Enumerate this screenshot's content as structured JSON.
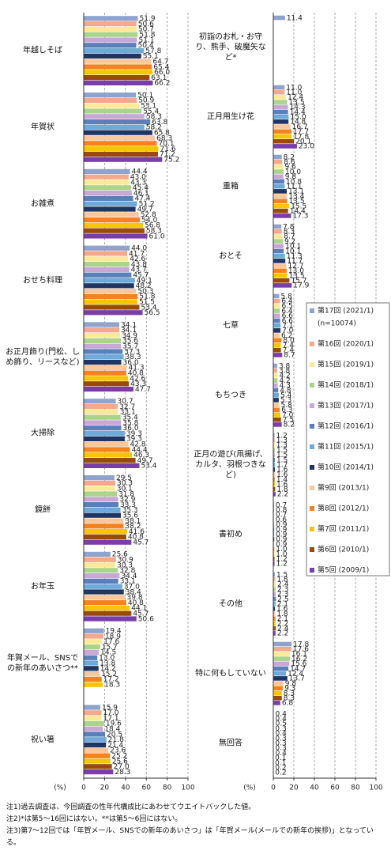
{
  "chart_data": [
    {
      "type": "bar",
      "orientation": "horizontal",
      "axis_label": "(%)",
      "categories": [
        "年越しそば",
        "年賀状",
        "お雑煮",
        "おせち料理",
        "お正月飾り(門松、しめ飾り、リースなど)",
        "大掃除",
        "鏡餅",
        "お年玉",
        "年賀メール、SNSでの新年のあいさつ**",
        "祝い箸"
      ],
      "xlim": [
        0,
        100
      ],
      "xticks": [
        0,
        20,
        40,
        60,
        80,
        100
      ],
      "grid": true,
      "series": [
        {
          "color": "#8fa3cf",
          "values": [
            51.9,
            50.1,
            44.4,
            44.0,
            34.1,
            30.7,
            29.5,
            25.6,
            19.4,
            15.9
          ],
          "value_labels": [
            "51.9",
            "50.1",
            "44.4",
            "44.0",
            "34.1",
            "30.7",
            "29.5",
            "25.6",
            "19.4",
            "15.9"
          ]
        },
        {
          "color": "#f4a88c",
          "values": [
            50.6,
            50.9,
            43.0,
            41.7,
            34.1,
            32.7,
            30.3,
            30.9,
            18.9,
            17.0
          ],
          "value_labels": [
            "50.6",
            "50.9",
            "43.0",
            "41.7",
            "34.1",
            "32.7",
            "30.3",
            "30.9",
            "18.9",
            "17.0"
          ]
        },
        {
          "color": "#fbe99a",
          "values": [
            50.7,
            53.1,
            43.3,
            42.6,
            34.9,
            33.1,
            30.1,
            30.3,
            17.6,
            17.1
          ],
          "value_labels": [
            "50.7",
            "53.1",
            "43.3",
            "42.6",
            "34.9",
            "33.1",
            "30.1",
            "30.3",
            "17.6",
            "17.1"
          ]
        },
        {
          "color": "#a9d48a",
          "values": [
            51.8,
            55.4,
            45.4,
            43.8,
            35.6,
            35.4,
            31.8,
            32.8,
            15.7,
            19.6
          ],
          "value_labels": [
            "51.8",
            "55.4",
            "45.4",
            "43.8",
            "35.6",
            "35.4",
            "31.8",
            "32.8",
            "15.7",
            "19.6"
          ]
        },
        {
          "color": "#c9a8d8",
          "values": [
            51.1,
            58.3,
            46.1,
            43.7,
            35.7,
            35.8,
            32.9,
            34.4,
            14.5,
            18.4
          ],
          "value_labels": [
            "51.1",
            "58.3",
            "46.1",
            "43.7",
            "35.7",
            "35.8",
            "32.9",
            "34.4",
            "14.5",
            "18.4"
          ]
        },
        {
          "color": "#5b7fb8",
          "values": [
            50.4,
            63.8,
            47.4,
            45.7,
            37.3,
            36.0,
            33.3,
            33.1,
            13.0,
            20.5
          ],
          "value_labels": [
            "50.4",
            "63.8",
            "47.4",
            "45.7",
            "37.3",
            "36.0",
            "33.3",
            "33.1",
            "13.0",
            "20.5"
          ]
        },
        {
          "color": "#6eaad8",
          "values": [
            57.8,
            58.2,
            51.2,
            49.1,
            38.3,
            39.3,
            35.3,
            37.0,
            13.8,
            21.8
          ],
          "value_labels": [
            "57.8",
            "58.2",
            "51.2",
            "49.1",
            "38.3",
            "39.3",
            "35.3",
            "37.0",
            "13.8",
            "21.8"
          ]
        },
        {
          "color": "#1f3564",
          "values": [
            55.1,
            65.8,
            49.7,
            48.2,
            36.0,
            39.3,
            35.6,
            38.4,
            14.2,
            21.4
          ],
          "value_labels": [
            "55.1",
            "65.8",
            "49.7",
            "48.2",
            "36.0",
            "39.3",
            "35.6",
            "38.4",
            "14.2",
            "21.4"
          ]
        },
        {
          "color": "#fcc79a",
          "values": [
            64.7,
            68.3,
            52.8,
            50.3,
            41.3,
            42.8,
            38.1,
            39.8,
            15.2,
            23.6
          ],
          "value_labels": [
            "64.7",
            "68.3",
            "52.8",
            "50.3",
            "41.3",
            "42.8",
            "38.1",
            "39.8",
            "15.2",
            "23.6"
          ]
        },
        {
          "color": "#f58220",
          "values": [
            65.4,
            70.1,
            54.0,
            51.8,
            40.8,
            44.4,
            38.2,
            40.8,
            17.2,
            25.2
          ],
          "value_labels": [
            "65.4",
            "70.1",
            "54.0",
            "51.8",
            "40.8",
            "44.4",
            "38.2",
            "40.8",
            "17.2",
            "25.2"
          ]
        },
        {
          "color": "#f7c600",
          "values": [
            66.0,
            71.6,
            56.8,
            51.5,
            42.6,
            46.3,
            41.6,
            44.1,
            18.3,
            25.6
          ],
          "value_labels": [
            "66.0",
            "71.6",
            "56.8",
            "51.5",
            "42.6",
            "46.3",
            "41.6",
            "44.1",
            "18.3",
            "25.6"
          ]
        },
        {
          "color": "#9a4a0c",
          "values": [
            63.1,
            71.2,
            58.3,
            53.4,
            43.3,
            49.7,
            40.8,
            45.7,
            null,
            27.0
          ],
          "value_labels": [
            "63.1",
            "71.2",
            "58.3",
            "53.4",
            "43.3",
            "49.7",
            "40.8",
            "45.7",
            null,
            "27.0"
          ]
        },
        {
          "color": "#7a3ea8",
          "values": [
            66.2,
            75.2,
            61.0,
            56.5,
            47.7,
            53.4,
            45.7,
            50.6,
            null,
            28.3
          ],
          "value_labels": [
            "66.2",
            "75.2",
            "61.0",
            "56.5",
            "47.7",
            "53.4",
            "45.7",
            "50.6",
            null,
            "28.3"
          ]
        }
      ]
    },
    {
      "type": "bar",
      "orientation": "horizontal",
      "axis_label": "(%)",
      "categories": [
        "初詣のお札・お守り、熊手、破魔矢など*",
        "正月用生け花",
        "重箱",
        "おとそ",
        "七草",
        "もちつき",
        "正月の遊び(凧揚げ、カルタ、羽根つきなど)",
        "書初め",
        "その他",
        "特に何もしていない",
        "無回答"
      ],
      "xlim": [
        0,
        100
      ],
      "xticks": [
        0,
        20,
        40,
        60,
        80,
        100
      ],
      "grid": true,
      "series": [
        {
          "name": "第17回 (2021/1)",
          "sample": "(n=10074)",
          "color": "#8fa3cf",
          "values": [
            11.4,
            11.0,
            8.2,
            7.8,
            5.8,
            3.8,
            1.2,
            0.7,
            1.5,
            17.8,
            0.4
          ],
          "value_labels": [
            "11.4",
            "11.0",
            "8.2",
            "7.8",
            "5.8",
            "3.8",
            "1.2",
            "0.7",
            "1.5",
            "17.8",
            "0.4"
          ]
        },
        {
          "name": "第16回 (2020/1)",
          "color": "#f4a88c",
          "values": [
            null,
            11.0,
            8.6,
            8.3,
            6.4,
            3.8,
            1.3,
            0.8,
            1.8,
            17.6,
            0.4
          ],
          "value_labels": [
            null,
            "11.0",
            "8.6",
            "8.3",
            "6.4",
            "3.8",
            "1.3",
            "0.8",
            "1.8",
            "17.6",
            "0.4"
          ]
        },
        {
          "name": "第15回 (2019/1)",
          "color": "#fbe99a",
          "values": [
            null,
            12.4,
            9.6,
            8.7,
            6.5,
            4.2,
            1.3,
            0.7,
            2.4,
            16.1,
            0.5
          ],
          "value_labels": [
            null,
            "12.4",
            "9.6",
            "8.7",
            "6.5",
            "4.2",
            "1.3",
            "0.7",
            "2.4",
            "16.1",
            "0.5"
          ]
        },
        {
          "name": "第14回 (2018/1)",
          "color": "#a9d48a",
          "values": [
            null,
            13.5,
            10.0,
            9.2,
            6.4,
            4.2,
            1.5,
            0.6,
            2.3,
            16.2,
            0.3
          ],
          "value_labels": [
            null,
            "13.5",
            "10.0",
            "9.2",
            "6.4",
            "4.2",
            "1.5",
            "0.6",
            "2.3",
            "16.2",
            "0.3"
          ]
        },
        {
          "name": "第13回 (2017/1)",
          "color": "#c9a8d8",
          "values": [
            null,
            14.3,
            9.8,
            10.1,
            6.6,
            4.3,
            1.5,
            0.9,
            2.3,
            15.6,
            0.4
          ],
          "value_labels": [
            null,
            "14.3",
            "9.8",
            "10.1",
            "6.6",
            "4.3",
            "1.5",
            "0.9",
            "2.3",
            "15.6",
            "0.4"
          ]
        },
        {
          "name": "第12回 (2016/1)",
          "color": "#5b7fb8",
          "values": [
            null,
            14.4,
            10.8,
            10.1,
            6.6,
            4.8,
            1.5,
            0.9,
            2.5,
            14.7,
            0.3
          ],
          "value_labels": [
            null,
            "14.4",
            "10.8",
            "10.1",
            "6.6",
            "4.8",
            "1.5",
            "0.9",
            "2.5",
            "14.7",
            "0.3"
          ]
        },
        {
          "name": "第11回 (2015/1)",
          "color": "#6eaad8",
          "values": [
            null,
            15.0,
            11.1,
            11.3,
            7.1,
            5.4,
            1.7,
            0.9,
            2.1,
            12.4,
            0.3
          ],
          "value_labels": [
            null,
            "15.0",
            "11.1",
            "11.3",
            "7.1",
            "5.4",
            "1.7",
            "0.9",
            "2.1",
            "12.4",
            "0.3"
          ]
        },
        {
          "name": "第10回 (2014/1)",
          "color": "#1f3564",
          "values": [
            null,
            14.8,
            13.1,
            11.7,
            7.0,
            5.3,
            1.6,
            0.9,
            1.6,
            13.7,
            0.3
          ],
          "value_labels": [
            null,
            "14.8",
            "13.1",
            "11.7",
            "7.0",
            "5.3",
            "1.6",
            "0.9",
            "1.6",
            "13.7",
            "0.3"
          ]
        },
        {
          "name": "第9回 (2013/1)",
          "color": "#fcc79a",
          "values": [
            null,
            16.7,
            13.4,
            12.7,
            6.2,
            5.8,
            1.6,
            0.9,
            1.8,
            9.8,
            0.4
          ],
          "value_labels": [
            null,
            "16.7",
            "13.4",
            "12.7",
            "6.2",
            "5.8",
            "1.6",
            "0.9",
            "1.8",
            "9.8",
            "0.4"
          ]
        },
        {
          "name": "第8回 (2012/1)",
          "color": "#f58220",
          "values": [
            null,
            17.7,
            13.5,
            13.0,
            8.0,
            6.3,
            1.4,
            1.0,
            2.1,
            9.3,
            0.1
          ],
          "value_labels": [
            null,
            "17.7",
            "13.5",
            "13.0",
            "8.0",
            "6.3",
            "1.4",
            "1.0",
            "2.1",
            "9.3",
            "0.1"
          ]
        },
        {
          "name": "第7回 (2011/1)",
          "color": "#f7c600",
          "values": [
            null,
            17.8,
            15.5,
            13.5,
            7.4,
            7.0,
            1.6,
            1.0,
            2.2,
            8.3,
            0.1
          ],
          "value_labels": [
            null,
            "17.8",
            "15.5",
            "13.5",
            "7.4",
            "7.0",
            "1.6",
            "1.0",
            "2.2",
            "8.3",
            "0.1"
          ]
        },
        {
          "name": "第6回 (2010/1)",
          "color": "#9a4a0c",
          "values": [
            null,
            20.1,
            14.4,
            15.7,
            7.4,
            7.5,
            1.8,
            1.2,
            2.4,
            8.3,
            0.2
          ],
          "value_labels": [
            null,
            "20.1",
            "14.4",
            "15.7",
            "7.4",
            "7.5",
            "1.8",
            "1.2",
            "2.4",
            "8.3",
            "0.2"
          ]
        },
        {
          "name": "第5回 (2009/1)",
          "color": "#7a3ea8",
          "values": [
            null,
            23.0,
            17.3,
            17.9,
            8.7,
            8.2,
            2.2,
            1.2,
            2.2,
            6.8,
            0.2
          ],
          "value_labels": [
            null,
            "23.0",
            "17.3",
            "17.9",
            "8.7",
            "8.2",
            "2.2",
            "1.2",
            "2.2",
            "6.8",
            "0.2"
          ]
        }
      ]
    }
  ],
  "notes": [
    "注1)過去調査は、今回調査の性年代構成比にあわせてウエイトバックした値。",
    "注2)*は第5～16回にはない。**は第5～6回にはない。",
    "注3)第7～12回では「年賀メール、SNSでの新年のあいさつ」は「年賀メール(メールでの新年の挨拶)」となっている。"
  ]
}
